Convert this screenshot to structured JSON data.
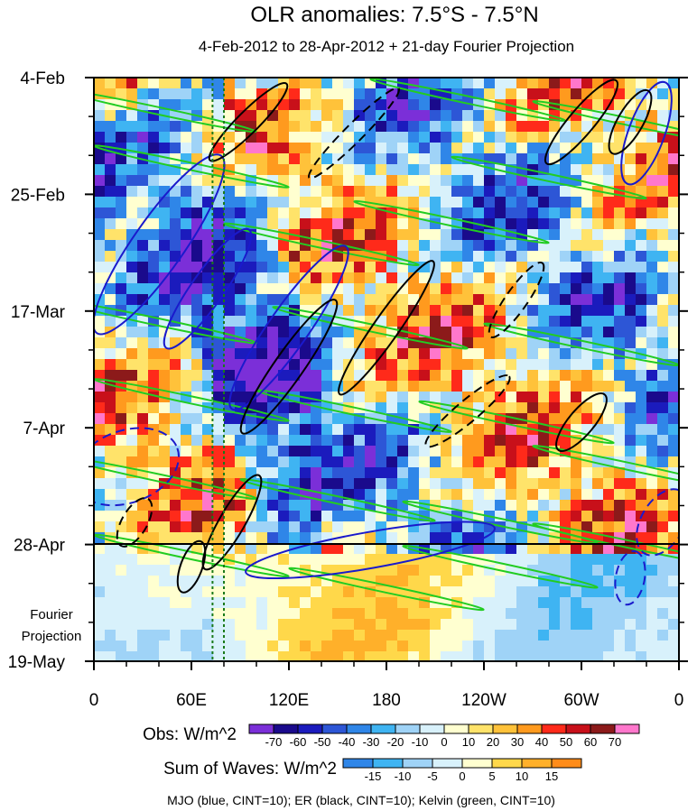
{
  "chart_data": {
    "type": "heatmap",
    "title": "OLR anomalies: 7.5°S - 7.5°N",
    "subtitle": "4-Feb-2012 to 28-Apr-2012 + 21-day Fourier Projection",
    "x_ticks": [
      "0",
      "60E",
      "120E",
      "180",
      "120W",
      "60W",
      "0"
    ],
    "x_tick_degrees": [
      0,
      60,
      120,
      180,
      240,
      300,
      360
    ],
    "y_ticks": [
      "4-Feb",
      "25-Feb",
      "17-Mar",
      "7-Apr",
      "28-Apr",
      "19-May"
    ],
    "y_tick_days": [
      0,
      21,
      42,
      63,
      84,
      105
    ],
    "y_range_days": [
      0,
      105
    ],
    "x_range_degrees": [
      0,
      360
    ],
    "projection_label": [
      "Fourier",
      "Projection"
    ],
    "projection_start_day": 84,
    "reference_lines_degrees": [
      73,
      80
    ],
    "obs_colorbar": {
      "label": "Obs: W/m^2",
      "levels": [
        "-70",
        "-60",
        "-50",
        "-40",
        "-30",
        "-20",
        "-10",
        "0",
        "10",
        "20",
        "30",
        "40",
        "50",
        "60",
        "70"
      ],
      "colors": [
        "#7b2fd8",
        "#1a0a8c",
        "#1b1bbd",
        "#2d56d6",
        "#2f86e8",
        "#3fb4f2",
        "#9fd3f7",
        "#d8f1fb",
        "#ffffd0",
        "#ffe36a",
        "#ffc23a",
        "#ff9a1e",
        "#ff2a1a",
        "#c8101a",
        "#8c1a1a",
        "#ff77cc"
      ]
    },
    "waves_colorbar": {
      "label": "Sum of Waves: W/m^2",
      "levels": [
        "-15",
        "-10",
        "-5",
        "0",
        "5",
        "10",
        "15"
      ],
      "colors": [
        "#2f86e8",
        "#3fb4f2",
        "#9fd3f7",
        "#d8f1fb",
        "#ffffd0",
        "#ffd84a",
        "#ffb02a",
        "#ff8c1a"
      ]
    },
    "caption": "MJO (blue, CINT=10); ER (black, CINT=10); Kelvin (green, CINT=10)",
    "contour_colors": {
      "mjo": "#1a1acc",
      "er": "#000000",
      "kelvin": "#22cc22"
    }
  }
}
